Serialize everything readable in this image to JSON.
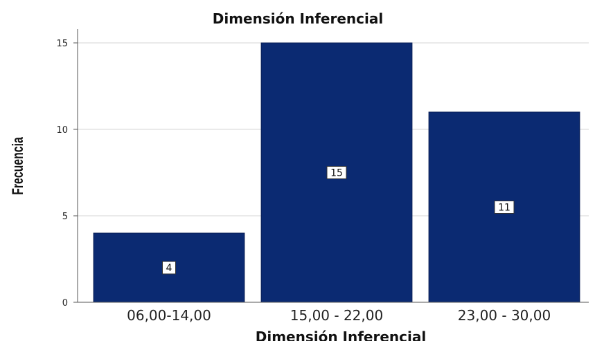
{
  "chart_data": {
    "type": "bar",
    "title": "Dimensión Inferencial",
    "xlabel": "Dimensión Inferencial",
    "ylabel": "Frecuencia",
    "categories": [
      "06,00-14,00",
      "15,00 - 22,00",
      "23,00 - 30,00"
    ],
    "values": [
      4,
      15,
      11
    ],
    "data_labels": [
      "4",
      "15",
      "11"
    ],
    "yticks": [
      0,
      5,
      10,
      15
    ],
    "ylim": [
      0,
      15
    ],
    "grid": true,
    "bar_color": "#0b2a72"
  }
}
